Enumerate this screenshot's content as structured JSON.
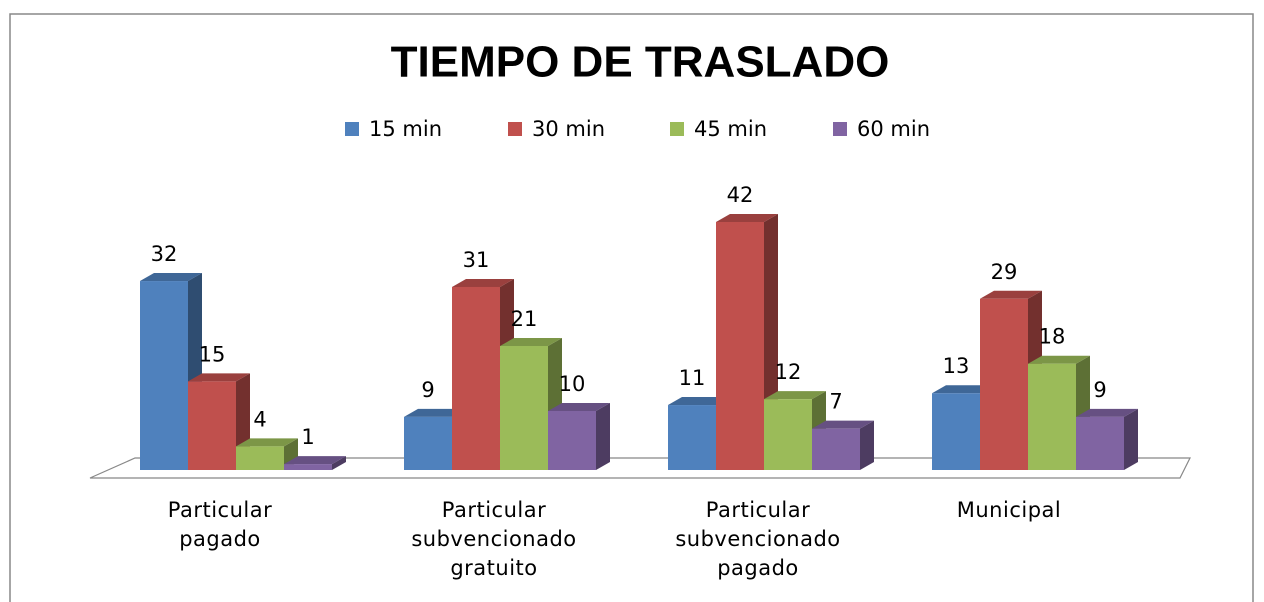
{
  "chart_data": {
    "type": "bar3d",
    "title": "TIEMPO DE TRASLADO",
    "categories": [
      "Particular pagado",
      "Particular subvencionado gratuito",
      "Particular subvencionado pagado",
      "Municipal"
    ],
    "series": [
      {
        "name": "15 min",
        "color": "#4f81bd",
        "values": [
          32,
          9,
          11,
          13
        ]
      },
      {
        "name": "30 min",
        "color": "#c0504d",
        "values": [
          15,
          31,
          42,
          29
        ]
      },
      {
        "name": "45 min",
        "color": "#9bbb59",
        "values": [
          4,
          21,
          12,
          18
        ]
      },
      {
        "name": "60 min",
        "color": "#8064a2",
        "values": [
          1,
          10,
          7,
          9
        ]
      }
    ],
    "legend": "top"
  }
}
